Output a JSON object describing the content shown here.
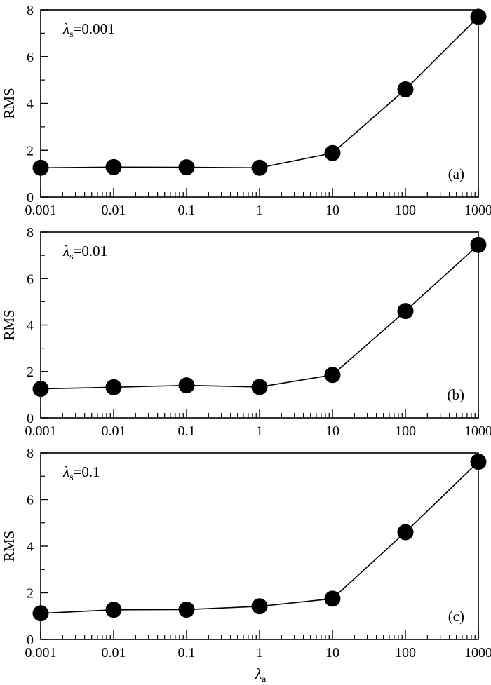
{
  "chart_data": [
    {
      "type": "line",
      "param_symbol": "λ",
      "param_sub": "s",
      "param_value": "=0.001",
      "panel_label": "(a)",
      "ylabel": "RMS",
      "xlabel_symbol": "",
      "xlabel_sub": "",
      "xscale": "log",
      "xlim": [
        0.001,
        1000
      ],
      "ylim": [
        0,
        8
      ],
      "xticks": [
        0.001,
        0.01,
        0.1,
        1,
        10,
        100,
        1000
      ],
      "xtick_labels": [
        "0.001",
        "0.01",
        "0.1",
        "1",
        "10",
        "100",
        "1000"
      ],
      "yticks": [
        0,
        2,
        4,
        6,
        8
      ],
      "ytick_labels": [
        "0",
        "2",
        "4",
        "6",
        "8"
      ],
      "grid": false,
      "series": [
        {
          "x": [
            0.001,
            0.01,
            0.1,
            1,
            10,
            100,
            1000
          ],
          "y": [
            1.25,
            1.28,
            1.27,
            1.25,
            1.88,
            4.6,
            7.7
          ]
        }
      ]
    },
    {
      "type": "line",
      "param_symbol": "λ",
      "param_sub": "s",
      "param_value": "=0.01",
      "panel_label": "(b)",
      "ylabel": "RMS",
      "xlabel_symbol": "",
      "xlabel_sub": "",
      "xscale": "log",
      "xlim": [
        0.001,
        1000
      ],
      "ylim": [
        0,
        8
      ],
      "xticks": [
        0.001,
        0.01,
        0.1,
        1,
        10,
        100,
        1000
      ],
      "xtick_labels": [
        "0.001",
        "0.01",
        "0.1",
        "1",
        "10",
        "100",
        "1000"
      ],
      "yticks": [
        0,
        2,
        4,
        6,
        8
      ],
      "ytick_labels": [
        "0",
        "2",
        "4",
        "6",
        "8"
      ],
      "grid": false,
      "series": [
        {
          "x": [
            0.001,
            0.01,
            0.1,
            1,
            10,
            100,
            1000
          ],
          "y": [
            1.25,
            1.32,
            1.4,
            1.33,
            1.85,
            4.6,
            7.45
          ]
        }
      ]
    },
    {
      "type": "line",
      "param_symbol": "λ",
      "param_sub": "s",
      "param_value": "=0.1",
      "panel_label": "(c)",
      "ylabel": "RMS",
      "xlabel_symbol": "λ",
      "xlabel_sub": "a",
      "xscale": "log",
      "xlim": [
        0.001,
        1000
      ],
      "ylim": [
        0,
        8
      ],
      "xticks": [
        0.001,
        0.01,
        0.1,
        1,
        10,
        100,
        1000
      ],
      "xtick_labels": [
        "0.001",
        "0.01",
        "0.1",
        "1",
        "10",
        "100",
        "1000"
      ],
      "yticks": [
        0,
        2,
        4,
        6,
        8
      ],
      "ytick_labels": [
        "0",
        "2",
        "4",
        "6",
        "8"
      ],
      "grid": false,
      "series": [
        {
          "x": [
            0.001,
            0.01,
            0.1,
            1,
            10,
            100,
            1000
          ],
          "y": [
            1.12,
            1.27,
            1.28,
            1.42,
            1.75,
            4.6,
            7.62
          ]
        }
      ]
    }
  ],
  "colors": {
    "line": "#000000",
    "marker": "#000000",
    "background": "#ffffff"
  }
}
